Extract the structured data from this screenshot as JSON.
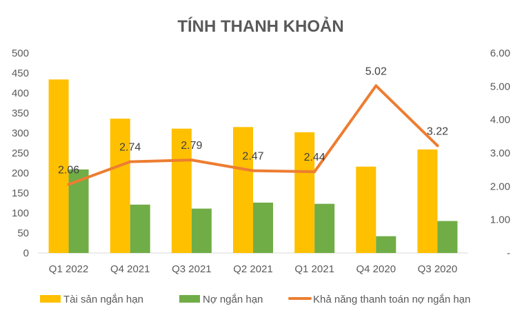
{
  "chart_data": {
    "type": "bar",
    "title": "TÍNH THANH KHOẢN",
    "categories": [
      "Q1 2022",
      "Q4 2021",
      "Q3 2021",
      "Q2 2021",
      "Q1 2021",
      "Q4 2020",
      "Q3 2020"
    ],
    "series": [
      {
        "name": "Tài sản ngắn hạn",
        "type": "bar",
        "axis": "left",
        "color": "#FFC000",
        "values": [
          434,
          336,
          311,
          315,
          302,
          216,
          259
        ]
      },
      {
        "name": "Nợ ngắn hạn",
        "type": "bar",
        "axis": "left",
        "color": "#70AD47",
        "values": [
          209,
          121,
          111,
          126,
          123,
          42,
          80
        ]
      },
      {
        "name": "Khả năng thanh toán nợ ngắn hạn",
        "type": "line",
        "axis": "right",
        "color": "#ED7D31",
        "values": [
          2.06,
          2.74,
          2.79,
          2.47,
          2.44,
          5.02,
          3.22
        ],
        "labels": [
          "2.06",
          "2.74",
          "2.79",
          "2.47",
          "2.44",
          "5.02",
          "3.22"
        ]
      }
    ],
    "left_axis": {
      "ylim": [
        0,
        500
      ],
      "ticks": [
        "500",
        "450",
        "400",
        "350",
        "300",
        "250",
        "200",
        "150",
        "100",
        "50",
        "0"
      ]
    },
    "right_axis": {
      "ylim": [
        0,
        6
      ],
      "ticks": [
        "6.00",
        "5.00",
        "4.00",
        "3.00",
        "2.00",
        "1.00",
        "-"
      ]
    },
    "grid": false,
    "legend_position": "bottom"
  }
}
